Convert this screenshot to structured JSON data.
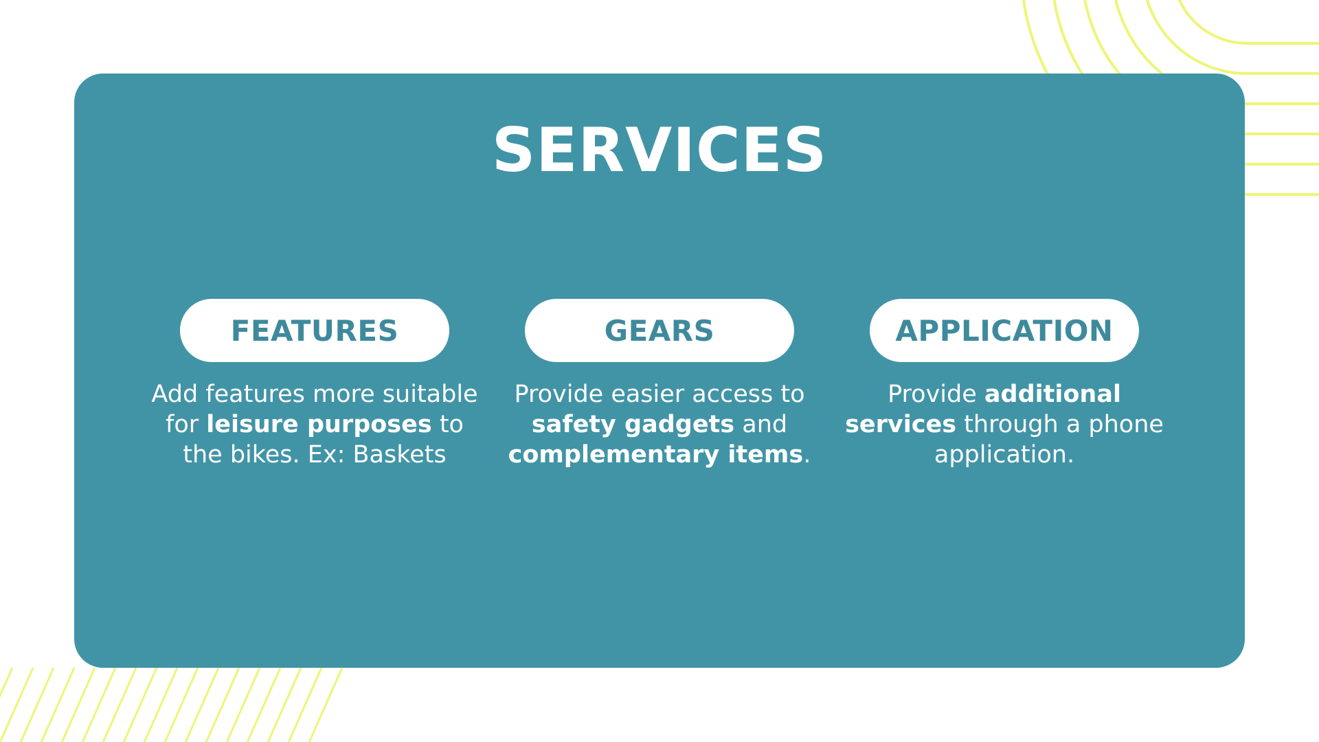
{
  "slide": {
    "title": "SERVICES",
    "colors": {
      "card": "#4194a6",
      "pill_text": "#3e8a9c",
      "accent_lines": "#eef576",
      "background": "#ffffff"
    },
    "services": [
      {
        "label": "FEATURES",
        "desc": {
          "t1": "Add features more suitable for ",
          "b1": "leisure purposes",
          "t2": " to the bikes. Ex: Baskets"
        }
      },
      {
        "label": "GEARS",
        "desc": {
          "t1": "Provide easier access to ",
          "b1": "safety gadgets",
          "t2": " and ",
          "b2": "complementary items",
          "t3": "."
        }
      },
      {
        "label": "APPLICATION",
        "desc": {
          "t1": "Provide ",
          "b1": "additional services",
          "t2": " through a phone application."
        }
      }
    ]
  }
}
